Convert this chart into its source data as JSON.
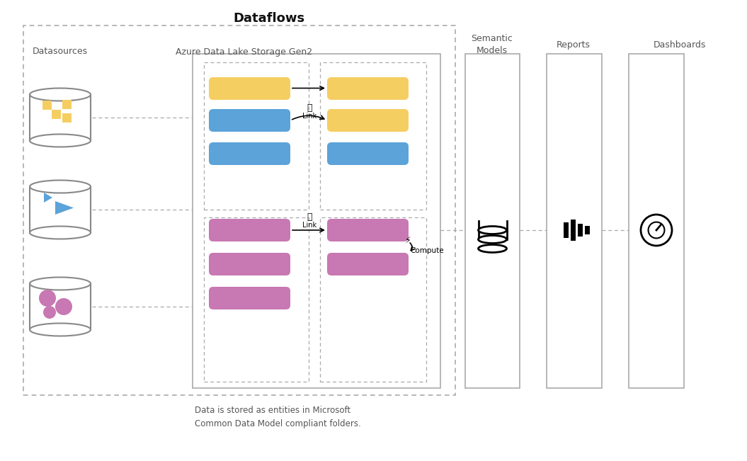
{
  "title": "Dataflows",
  "bg_color": "#ffffff",
  "colors": {
    "yellow": "#F5CE62",
    "blue": "#5BA3D9",
    "pink": "#C878B2",
    "gray_border": "#999999",
    "dashed_border": "#aaaaaa",
    "black": "#111111"
  },
  "datasources_label": "Datasources",
  "adls_label": "Azure Data Lake Storage Gen2",
  "semantic_label": "Semantic\nModels",
  "reports_label": "Reports",
  "dashboards_label": "Dashboards",
  "link_label": "Link",
  "compute_label": "Compute",
  "footnote": "Data is stored as entities in Microsoft\nCommon Data Model compliant folders."
}
